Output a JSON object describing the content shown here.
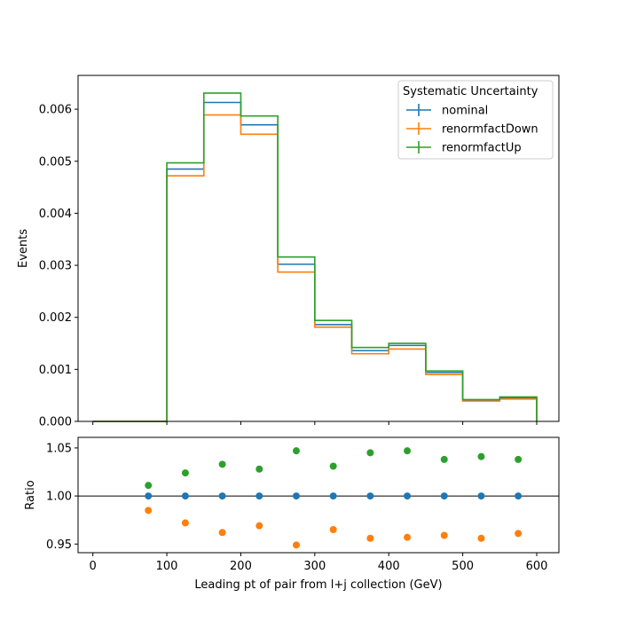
{
  "chart_data": [
    {
      "type": "histogram-step",
      "xlabel": "",
      "ylabel": "Events",
      "xlim": [
        -20,
        630
      ],
      "ylim": [
        0,
        0.00665
      ],
      "bin_edges": [
        0,
        50,
        100,
        150,
        200,
        250,
        300,
        350,
        400,
        450,
        500,
        550,
        600
      ],
      "yticks": [
        0.0,
        0.001,
        0.002,
        0.003,
        0.004,
        0.005,
        0.006
      ],
      "ytick_labels": [
        "0.000",
        "0.001",
        "0.002",
        "0.003",
        "0.004",
        "0.005",
        "0.006"
      ],
      "legend": {
        "title": "Systematic Uncertainty",
        "placement": "top-right"
      },
      "series": [
        {
          "name": "nominal",
          "color": "#1f77b4",
          "values": [
            0,
            0,
            0.00485,
            0.00613,
            0.0057,
            0.00302,
            0.00186,
            0.00136,
            0.00146,
            0.00094,
            0.00041,
            0.00045
          ]
        },
        {
          "name": "renormfactDown",
          "color": "#ff7f0e",
          "values": [
            0,
            0,
            0.00472,
            0.00589,
            0.00552,
            0.00287,
            0.00181,
            0.0013,
            0.00139,
            0.0009,
            0.00039,
            0.00043
          ]
        },
        {
          "name": "renormfactUp",
          "color": "#2ca02c",
          "values": [
            0,
            0,
            0.00497,
            0.00631,
            0.00587,
            0.00316,
            0.00194,
            0.00142,
            0.0015,
            0.00097,
            0.00042,
            0.00047
          ]
        }
      ]
    },
    {
      "type": "scatter",
      "xlabel": "Leading pt of pair from l+j collection (GeV)",
      "ylabel": "Ratio",
      "xlim": [
        -20,
        630
      ],
      "ylim": [
        0.941,
        1.061
      ],
      "xticks": [
        0,
        100,
        200,
        300,
        400,
        500,
        600
      ],
      "xtick_labels": [
        "0",
        "100",
        "200",
        "300",
        "400",
        "500",
        "600"
      ],
      "yticks": [
        0.95,
        1.0,
        1.05
      ],
      "ytick_labels": [
        "0.95",
        "1.00",
        "1.05"
      ],
      "reference_line": 1.0,
      "x": [
        75,
        125,
        175,
        225,
        275,
        325,
        375,
        425,
        475,
        525,
        575
      ],
      "series": [
        {
          "name": "nominal",
          "color": "#1f77b4",
          "values": [
            1.0,
            1.0,
            1.0,
            1.0,
            1.0,
            1.0,
            1.0,
            1.0,
            1.0,
            1.0,
            1.0
          ]
        },
        {
          "name": "renormfactDown",
          "color": "#ff7f0e",
          "values": [
            0.985,
            0.972,
            0.962,
            0.969,
            0.949,
            0.965,
            0.956,
            0.957,
            0.959,
            0.956,
            0.961
          ]
        },
        {
          "name": "renormfactUp",
          "color": "#2ca02c",
          "values": [
            1.011,
            1.024,
            1.033,
            1.028,
            1.047,
            1.031,
            1.045,
            1.047,
            1.038,
            1.041,
            1.038
          ]
        }
      ]
    }
  ]
}
